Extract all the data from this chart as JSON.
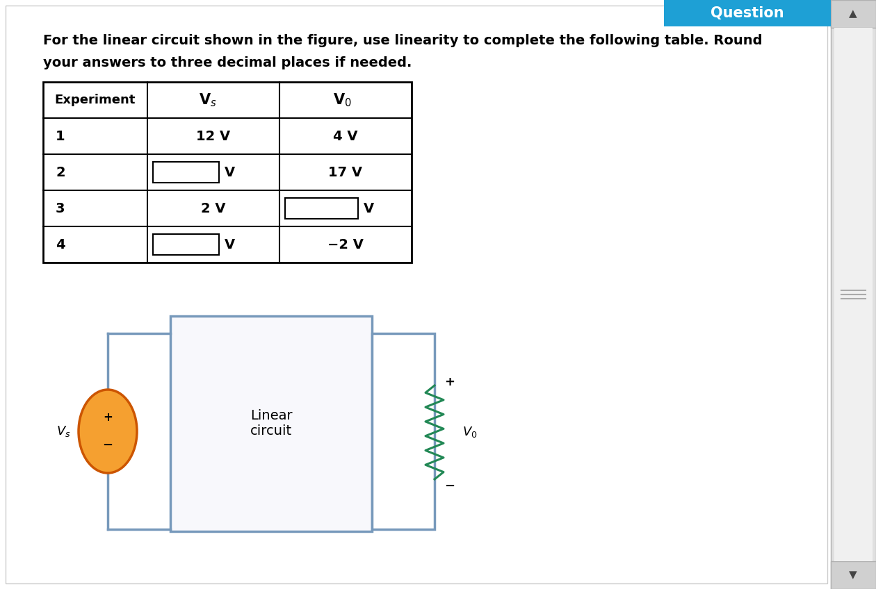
{
  "bg_color": "#ffffff",
  "question_banner_color": "#1ea0d5",
  "question_banner_text": "Question",
  "question_banner_text_color": "#ffffff",
  "title_line1": "For the linear circuit shown in the figure, use linearity to complete the following table. Round",
  "title_line2": "your answers to three decimal places if needed.",
  "table_rows": [
    {
      "exp": "1",
      "vs": "12 V",
      "vs_box": false,
      "v0": "4 V",
      "v0_box": false
    },
    {
      "exp": "2",
      "vs": "",
      "vs_box": true,
      "vs_suffix": "V",
      "v0": "17 V",
      "v0_box": false
    },
    {
      "exp": "3",
      "vs": "2 V",
      "vs_box": false,
      "v0": "",
      "v0_box": true,
      "v0_suffix": "V"
    },
    {
      "exp": "4",
      "vs": "",
      "vs_box": true,
      "vs_suffix": "V",
      "v0": "−2 V",
      "v0_box": false
    }
  ],
  "circuit_line_color": "#7799bb",
  "source_fill_color": "#f5a030",
  "source_edge_color": "#cc5500",
  "resistor_color": "#228855",
  "scrollbar_bg": "#e8e8e8",
  "scrollbar_handle": "#c8c8c8"
}
